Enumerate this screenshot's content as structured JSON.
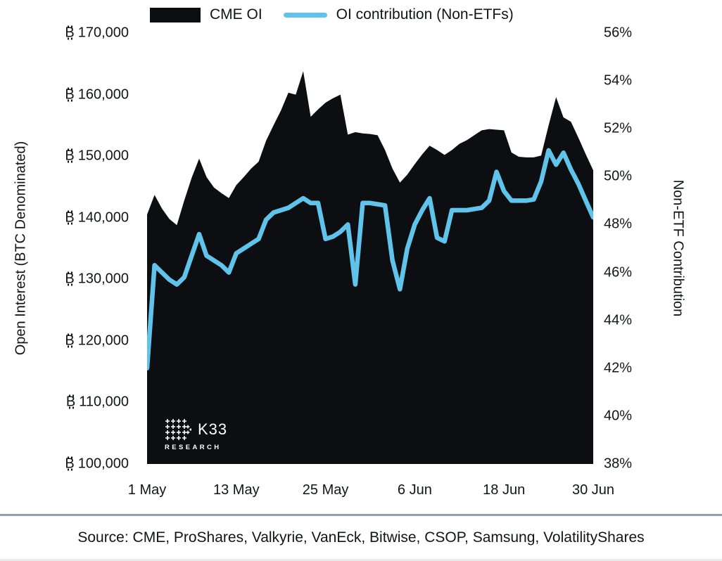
{
  "legend": {
    "items": [
      {
        "label": "CME OI",
        "swatch": "area",
        "color": "#0d0e12"
      },
      {
        "label": "OI contribution (Non-ETFs)",
        "swatch": "line",
        "color": "#60c4ea"
      }
    ]
  },
  "axes": {
    "left": {
      "title": "Open Interest (BTC Denominated)",
      "unit_symbol": "₿",
      "ticks": [
        "170,000",
        "160,000",
        "150,000",
        "140,000",
        "130,000",
        "120,000",
        "110,000",
        "100,000"
      ]
    },
    "right": {
      "title": "Non-ETF Contribution",
      "ticks": [
        "56%",
        "54%",
        "52%",
        "50%",
        "48%",
        "46%",
        "44%",
        "42%",
        "40%",
        "38%"
      ]
    },
    "x": {
      "ticks": [
        "1 May",
        "13 May",
        "25 May",
        "6 Jun",
        "18 Jun",
        "30 Jun"
      ]
    }
  },
  "watermark": {
    "brand": "K33",
    "sub": "RESEARCH"
  },
  "footer": {
    "source": "Source: CME, ProShares, Valkyrie, VanEck, Bitwise, CSOP, Samsung, VolatilityShares"
  },
  "chart_data": {
    "type": "area+line",
    "title": "",
    "grid": false,
    "legend_position": "top",
    "left_ylabel": "Open Interest (BTC Denominated)",
    "right_ylabel": "Non-ETF Contribution",
    "left_ylim": [
      100000,
      170000
    ],
    "right_ylim": [
      38,
      56
    ],
    "x": [
      "1 May",
      "2 May",
      "3 May",
      "4 May",
      "5 May",
      "6 May",
      "7 May",
      "8 May",
      "9 May",
      "10 May",
      "11 May",
      "12 May",
      "13 May",
      "14 May",
      "15 May",
      "16 May",
      "17 May",
      "18 May",
      "19 May",
      "20 May",
      "21 May",
      "22 May",
      "23 May",
      "24 May",
      "25 May",
      "26 May",
      "27 May",
      "28 May",
      "29 May",
      "30 May",
      "31 May",
      "1 Jun",
      "2 Jun",
      "3 Jun",
      "4 Jun",
      "5 Jun",
      "6 Jun",
      "7 Jun",
      "8 Jun",
      "9 Jun",
      "10 Jun",
      "11 Jun",
      "12 Jun",
      "13 Jun",
      "14 Jun",
      "15 Jun",
      "16 Jun",
      "17 Jun",
      "18 Jun",
      "19 Jun",
      "20 Jun",
      "21 Jun",
      "22 Jun",
      "23 Jun",
      "24 Jun",
      "25 Jun",
      "26 Jun",
      "27 Jun",
      "28 Jun",
      "29 Jun",
      "30 Jun"
    ],
    "series": [
      {
        "name": "CME OI",
        "type": "area",
        "axis": "left",
        "color": "#0d0e12",
        "unit": "BTC",
        "values": [
          140500,
          143700,
          141500,
          139800,
          138800,
          142800,
          146500,
          149600,
          146600,
          144900,
          144000,
          143200,
          145300,
          146600,
          148000,
          149100,
          152500,
          155000,
          157400,
          160300,
          160000,
          163800,
          156400,
          157600,
          158700,
          159400,
          160000,
          153500,
          153900,
          153700,
          153600,
          153400,
          151000,
          148000,
          145700,
          147000,
          148700,
          150300,
          151700,
          151000,
          150200,
          151000,
          152000,
          152600,
          153400,
          154200,
          154400,
          154300,
          154200,
          150600,
          149900,
          149800,
          149800,
          150100,
          155000,
          159600,
          156300,
          155600,
          153000,
          150300,
          147700
        ]
      },
      {
        "name": "OI contribution (Non-ETFs)",
        "type": "line",
        "axis": "right",
        "color": "#60c4ea",
        "unit": "%",
        "values": [
          42.0,
          46.3,
          46.0,
          45.7,
          45.5,
          45.8,
          46.7,
          47.6,
          46.7,
          46.5,
          46.3,
          46.0,
          46.8,
          47.0,
          47.2,
          47.4,
          48.2,
          48.5,
          48.6,
          48.7,
          48.9,
          49.1,
          48.9,
          48.9,
          47.4,
          47.5,
          47.7,
          48.0,
          45.5,
          48.9,
          48.9,
          48.85,
          48.8,
          46.5,
          45.3,
          47.0,
          48.0,
          48.6,
          49.1,
          47.45,
          47.3,
          48.6,
          48.6,
          48.6,
          48.65,
          48.7,
          49.0,
          50.2,
          49.4,
          49.0,
          49.0,
          49.0,
          49.05,
          49.8,
          51.1,
          50.5,
          51.0,
          50.3,
          49.7,
          49.0,
          48.3
        ]
      }
    ]
  }
}
